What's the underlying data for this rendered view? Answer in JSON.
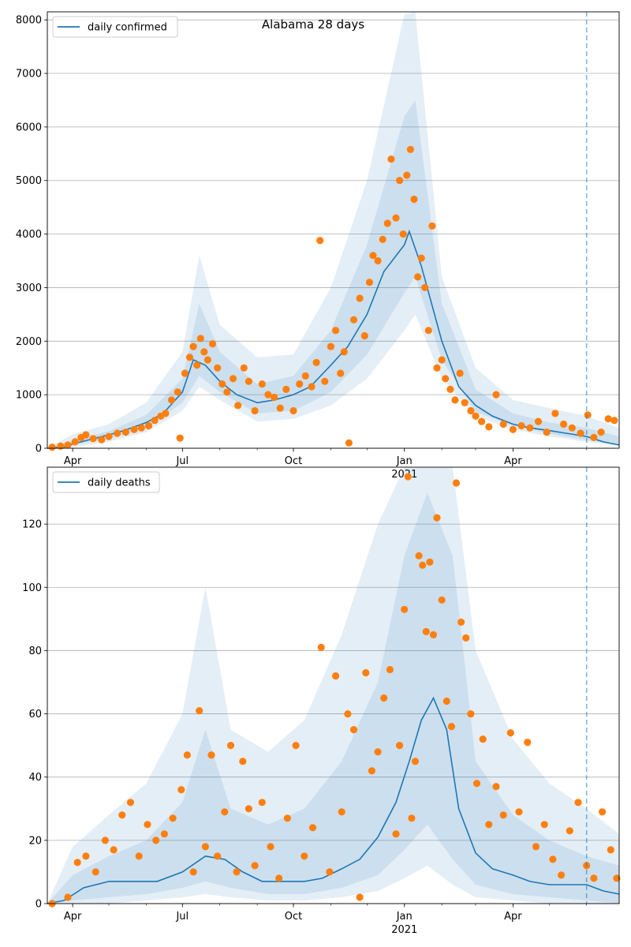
{
  "chart_data": [
    {
      "type": "line",
      "title": "Alabama 28 days",
      "xlabel": "",
      "ylabel": "",
      "ylim": [
        0,
        8150
      ],
      "xlim": [
        "2020-03-11",
        "2021-06-28"
      ],
      "yticks": [
        0,
        1000,
        2000,
        3000,
        4000,
        5000,
        6000,
        7000,
        8000
      ],
      "xticks": [
        {
          "date": "2020-04-01",
          "label": "Apr",
          "label2": ""
        },
        {
          "date": "2020-07-01",
          "label": "Jul",
          "label2": ""
        },
        {
          "date": "2020-10-01",
          "label": "Oct",
          "label2": ""
        },
        {
          "date": "2021-01-01",
          "label": "Jan",
          "label2": "2021"
        },
        {
          "date": "2021-04-01",
          "label": "Apr",
          "label2": ""
        }
      ],
      "grid": "horizontal",
      "legend": "top-left",
      "vline_date": "2021-06-01",
      "series": [
        {
          "name": "daily confirmed",
          "kind": "line",
          "color": "#1f77b4",
          "x": [
            "2020-03-11",
            "2020-03-25",
            "2020-04-01",
            "2020-04-15",
            "2020-05-01",
            "2020-05-15",
            "2020-06-01",
            "2020-06-15",
            "2020-07-01",
            "2020-07-10",
            "2020-07-20",
            "2020-08-01",
            "2020-08-15",
            "2020-09-01",
            "2020-09-15",
            "2020-10-01",
            "2020-10-15",
            "2020-11-01",
            "2020-11-15",
            "2020-12-01",
            "2020-12-15",
            "2021-01-01",
            "2021-01-05",
            "2021-01-15",
            "2021-02-01",
            "2021-02-15",
            "2021-03-01",
            "2021-03-15",
            "2021-04-01",
            "2021-04-15",
            "2021-05-01",
            "2021-05-15",
            "2021-06-01",
            "2021-06-15",
            "2021-06-28"
          ],
          "y": [
            0,
            20,
            80,
            160,
            250,
            340,
            480,
            650,
            1050,
            1650,
            1550,
            1250,
            1000,
            850,
            900,
            1000,
            1150,
            1550,
            1900,
            2500,
            3300,
            3800,
            4050,
            3400,
            2000,
            1150,
            800,
            600,
            450,
            380,
            330,
            280,
            220,
            120,
            60
          ]
        },
        {
          "name": "",
          "kind": "band",
          "color": "#1f77b4",
          "x": [
            "2020-03-11",
            "2020-04-01",
            "2020-05-01",
            "2020-06-01",
            "2020-07-01",
            "2020-07-15",
            "2020-08-01",
            "2020-09-01",
            "2020-10-01",
            "2020-11-01",
            "2020-12-01",
            "2021-01-01",
            "2021-01-10",
            "2021-02-01",
            "2021-03-01",
            "2021-04-01",
            "2021-05-01",
            "2021-06-01",
            "2021-06-28"
          ],
          "low": [
            0,
            20,
            120,
            300,
            700,
            1150,
            900,
            500,
            550,
            800,
            1300,
            2200,
            2500,
            1300,
            600,
            350,
            220,
            120,
            40
          ],
          "high": [
            0,
            260,
            450,
            850,
            1800,
            3600,
            2300,
            1700,
            1750,
            3000,
            5000,
            8100,
            8150,
            3200,
            1500,
            900,
            750,
            600,
            380
          ]
        },
        {
          "name": "",
          "kind": "band",
          "color": "#1f77b4",
          "x": [
            "2020-03-11",
            "2020-04-01",
            "2020-05-01",
            "2020-06-01",
            "2020-07-01",
            "2020-07-15",
            "2020-08-01",
            "2020-09-01",
            "2020-10-01",
            "2020-11-01",
            "2020-12-01",
            "2021-01-01",
            "2021-01-10",
            "2021-02-01",
            "2021-03-01",
            "2021-04-01",
            "2021-05-01",
            "2021-06-01",
            "2021-06-28"
          ],
          "low": [
            0,
            60,
            180,
            380,
            850,
            1350,
            1050,
            650,
            700,
            1050,
            1750,
            2900,
            3200,
            1650,
            680,
            420,
            270,
            150,
            60
          ],
          "high": [
            0,
            140,
            320,
            620,
            1300,
            2700,
            1800,
            1200,
            1350,
            2200,
            3800,
            6200,
            6500,
            2700,
            1100,
            650,
            480,
            380,
            220
          ]
        },
        {
          "name": "",
          "kind": "scatter",
          "color": "#ff7f0e",
          "x": [
            "2020-03-15",
            "2020-03-22",
            "2020-03-28",
            "2020-04-03",
            "2020-04-08",
            "2020-04-12",
            "2020-04-18",
            "2020-04-25",
            "2020-05-01",
            "2020-05-08",
            "2020-05-15",
            "2020-05-22",
            "2020-05-28",
            "2020-06-03",
            "2020-06-08",
            "2020-06-13",
            "2020-06-17",
            "2020-06-22",
            "2020-06-27",
            "2020-06-29",
            "2020-07-03",
            "2020-07-07",
            "2020-07-10",
            "2020-07-13",
            "2020-07-16",
            "2020-07-19",
            "2020-07-22",
            "2020-07-26",
            "2020-07-30",
            "2020-08-03",
            "2020-08-07",
            "2020-08-12",
            "2020-08-16",
            "2020-08-21",
            "2020-08-25",
            "2020-08-30",
            "2020-09-05",
            "2020-09-10",
            "2020-09-15",
            "2020-09-20",
            "2020-09-25",
            "2020-10-01",
            "2020-10-06",
            "2020-10-11",
            "2020-10-16",
            "2020-10-20",
            "2020-10-23",
            "2020-10-27",
            "2020-11-01",
            "2020-11-05",
            "2020-11-09",
            "2020-11-12",
            "2020-11-16",
            "2020-11-20",
            "2020-11-25",
            "2020-11-29",
            "2020-12-03",
            "2020-12-06",
            "2020-12-10",
            "2020-12-14",
            "2020-12-18",
            "2020-12-21",
            "2020-12-25",
            "2020-12-28",
            "2020-12-31",
            "2021-01-03",
            "2021-01-06",
            "2021-01-09",
            "2021-01-12",
            "2021-01-15",
            "2021-01-18",
            "2021-01-21",
            "2021-01-24",
            "2021-01-28",
            "2021-02-01",
            "2021-02-04",
            "2021-02-08",
            "2021-02-12",
            "2021-02-16",
            "2021-02-20",
            "2021-02-25",
            "2021-03-01",
            "2021-03-06",
            "2021-03-12",
            "2021-03-18",
            "2021-03-24",
            "2021-04-01",
            "2021-04-08",
            "2021-04-15",
            "2021-04-22",
            "2021-04-29",
            "2021-05-06",
            "2021-05-13",
            "2021-05-20",
            "2021-05-27",
            "2021-06-02",
            "2021-06-07",
            "2021-06-13",
            "2021-06-19",
            "2021-06-24"
          ],
          "y": [
            20,
            40,
            60,
            120,
            200,
            250,
            180,
            160,
            220,
            280,
            300,
            350,
            380,
            420,
            520,
            600,
            650,
            900,
            1050,
            190,
            1400,
            1700,
            1900,
            1550,
            2050,
            1800,
            1650,
            1950,
            1500,
            1200,
            1050,
            1300,
            800,
            1500,
            1250,
            700,
            1200,
            1000,
            950,
            750,
            1100,
            700,
            1200,
            1350,
            1150,
            1600,
            3880,
            1250,
            1900,
            2200,
            1400,
            1800,
            100,
            2400,
            2800,
            2100,
            3100,
            3600,
            3500,
            3900,
            4200,
            5400,
            4300,
            5000,
            4000,
            5100,
            5580,
            4650,
            3200,
            3550,
            3000,
            2200,
            4150,
            1500,
            1650,
            1300,
            1100,
            900,
            1400,
            850,
            700,
            600,
            500,
            400,
            1000,
            450,
            350,
            420,
            380,
            500,
            300,
            650,
            450,
            380,
            280,
            620,
            200,
            300,
            550,
            520
          ]
        }
      ]
    },
    {
      "type": "line",
      "title": "",
      "xlabel": "",
      "ylabel": "",
      "ylim": [
        0,
        138
      ],
      "xlim": [
        "2020-03-11",
        "2021-06-28"
      ],
      "yticks": [
        0,
        20,
        40,
        60,
        80,
        100,
        120
      ],
      "xticks": [
        {
          "date": "2020-04-01",
          "label": "Apr",
          "label2": ""
        },
        {
          "date": "2020-07-01",
          "label": "Jul",
          "label2": ""
        },
        {
          "date": "2020-10-01",
          "label": "Oct",
          "label2": ""
        },
        {
          "date": "2021-01-01",
          "label": "Jan",
          "label2": "2021"
        },
        {
          "date": "2021-04-01",
          "label": "Apr",
          "label2": ""
        }
      ],
      "grid": "horizontal",
      "legend": "top-left",
      "vline_date": "2021-06-01",
      "series": [
        {
          "name": "daily deaths",
          "kind": "line",
          "color": "#1f77b4",
          "x": [
            "2020-03-11",
            "2020-03-25",
            "2020-04-10",
            "2020-05-01",
            "2020-05-20",
            "2020-06-10",
            "2020-07-01",
            "2020-07-20",
            "2020-08-05",
            "2020-08-20",
            "2020-09-05",
            "2020-09-20",
            "2020-10-10",
            "2020-10-25",
            "2020-11-10",
            "2020-11-25",
            "2020-12-10",
            "2020-12-25",
            "2021-01-05",
            "2021-01-15",
            "2021-01-25",
            "2021-02-05",
            "2021-02-15",
            "2021-03-01",
            "2021-03-15",
            "2021-04-01",
            "2021-04-15",
            "2021-05-01",
            "2021-05-15",
            "2021-06-01",
            "2021-06-15",
            "2021-06-28"
          ],
          "y": [
            0,
            1,
            5,
            7,
            7,
            7,
            10,
            15,
            14,
            10,
            7,
            7,
            7,
            8,
            11,
            14,
            21,
            32,
            45,
            58,
            65,
            55,
            30,
            16,
            11,
            9,
            7,
            6,
            6,
            6,
            4,
            3
          ]
        },
        {
          "name": "",
          "kind": "band",
          "color": "#1f77b4",
          "x": [
            "2020-03-11",
            "2020-04-01",
            "2020-05-01",
            "2020-06-01",
            "2020-07-01",
            "2020-07-20",
            "2020-08-10",
            "2020-09-10",
            "2020-10-10",
            "2020-11-10",
            "2020-12-10",
            "2021-01-01",
            "2021-01-20",
            "2021-02-10",
            "2021-03-01",
            "2021-04-01",
            "2021-05-01",
            "2021-06-01",
            "2021-06-28"
          ],
          "low": [
            0,
            0,
            0,
            1,
            2,
            3,
            2,
            1,
            1,
            2,
            4,
            8,
            12,
            6,
            2,
            1,
            0,
            0,
            0
          ],
          "high": [
            0,
            18,
            28,
            38,
            60,
            100,
            55,
            48,
            58,
            85,
            120,
            138,
            138,
            138,
            80,
            52,
            38,
            30,
            22
          ]
        },
        {
          "name": "",
          "kind": "band",
          "color": "#1f77b4",
          "x": [
            "2020-03-11",
            "2020-04-01",
            "2020-05-01",
            "2020-06-01",
            "2020-07-01",
            "2020-07-20",
            "2020-08-10",
            "2020-09-10",
            "2020-10-10",
            "2020-11-10",
            "2020-12-10",
            "2021-01-01",
            "2021-01-20",
            "2021-02-10",
            "2021-03-01",
            "2021-04-01",
            "2021-05-01",
            "2021-06-01",
            "2021-06-28"
          ],
          "low": [
            0,
            1,
            2,
            3,
            5,
            7,
            5,
            3,
            3,
            5,
            9,
            17,
            25,
            14,
            6,
            3,
            2,
            1,
            0
          ],
          "high": [
            0,
            9,
            15,
            20,
            32,
            55,
            30,
            25,
            30,
            45,
            70,
            110,
            130,
            110,
            45,
            28,
            20,
            15,
            12
          ]
        },
        {
          "name": "",
          "kind": "scatter",
          "color": "#ff7f0e",
          "x": [
            "2020-03-15",
            "2020-03-28",
            "2020-04-05",
            "2020-04-12",
            "2020-04-20",
            "2020-04-28",
            "2020-05-05",
            "2020-05-12",
            "2020-05-19",
            "2020-05-26",
            "2020-06-02",
            "2020-06-09",
            "2020-06-16",
            "2020-06-23",
            "2020-06-30",
            "2020-07-05",
            "2020-07-10",
            "2020-07-15",
            "2020-07-20",
            "2020-07-25",
            "2020-07-30",
            "2020-08-05",
            "2020-08-10",
            "2020-08-15",
            "2020-08-20",
            "2020-08-25",
            "2020-08-30",
            "2020-09-05",
            "2020-09-12",
            "2020-09-19",
            "2020-09-26",
            "2020-10-03",
            "2020-10-10",
            "2020-10-17",
            "2020-10-24",
            "2020-10-31",
            "2020-11-05",
            "2020-11-10",
            "2020-11-15",
            "2020-11-20",
            "2020-11-25",
            "2020-11-30",
            "2020-12-05",
            "2020-12-10",
            "2020-12-15",
            "2020-12-20",
            "2020-12-25",
            "2020-12-28",
            "2021-01-01",
            "2021-01-04",
            "2021-01-07",
            "2021-01-10",
            "2021-01-13",
            "2021-01-16",
            "2021-01-19",
            "2021-01-22",
            "2021-01-25",
            "2021-01-28",
            "2021-02-01",
            "2021-02-05",
            "2021-02-09",
            "2021-02-13",
            "2021-02-17",
            "2021-02-21",
            "2021-02-25",
            "2021-03-02",
            "2021-03-07",
            "2021-03-12",
            "2021-03-18",
            "2021-03-24",
            "2021-03-30",
            "2021-04-06",
            "2021-04-13",
            "2021-04-20",
            "2021-04-27",
            "2021-05-04",
            "2021-05-11",
            "2021-05-18",
            "2021-05-25",
            "2021-06-01",
            "2021-06-07",
            "2021-06-14",
            "2021-06-21",
            "2021-06-26"
          ],
          "y": [
            0,
            2,
            13,
            15,
            10,
            20,
            17,
            28,
            32,
            15,
            25,
            20,
            22,
            27,
            36,
            47,
            10,
            61,
            18,
            47,
            15,
            29,
            50,
            10,
            45,
            30,
            12,
            32,
            18,
            8,
            27,
            50,
            15,
            24,
            81,
            10,
            72,
            29,
            60,
            55,
            2,
            73,
            42,
            48,
            65,
            74,
            22,
            50,
            93,
            135,
            27,
            45,
            110,
            107,
            86,
            108,
            85,
            122,
            96,
            64,
            56,
            133,
            89,
            84,
            60,
            38,
            52,
            25,
            37,
            28,
            54,
            29,
            51,
            18,
            25,
            14,
            9,
            23,
            32,
            12,
            8,
            29,
            17,
            8
          ]
        }
      ]
    }
  ]
}
